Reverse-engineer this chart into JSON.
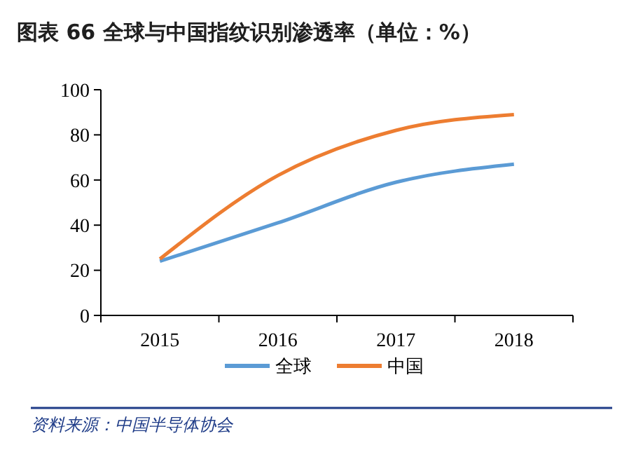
{
  "chart_data": {
    "type": "line",
    "title": "图表 66   全球与中国指纹识别渗透率（单位：%）",
    "categories": [
      "2015",
      "2016",
      "2017",
      "2018"
    ],
    "series": [
      {
        "name": "全球",
        "color": "#5b9bd5",
        "values": [
          24,
          41,
          59,
          67
        ]
      },
      {
        "name": "中国",
        "color": "#ed7d31",
        "values": [
          25,
          62,
          82,
          89
        ]
      }
    ],
    "ylim": [
      0,
      100
    ],
    "yticks": [
      0,
      20,
      40,
      60,
      80,
      100
    ],
    "grid": false,
    "legend": "bottom",
    "marker": "none",
    "line_style": "solid",
    "annotations": [
      "资料来源：中国半导体协会"
    ]
  }
}
